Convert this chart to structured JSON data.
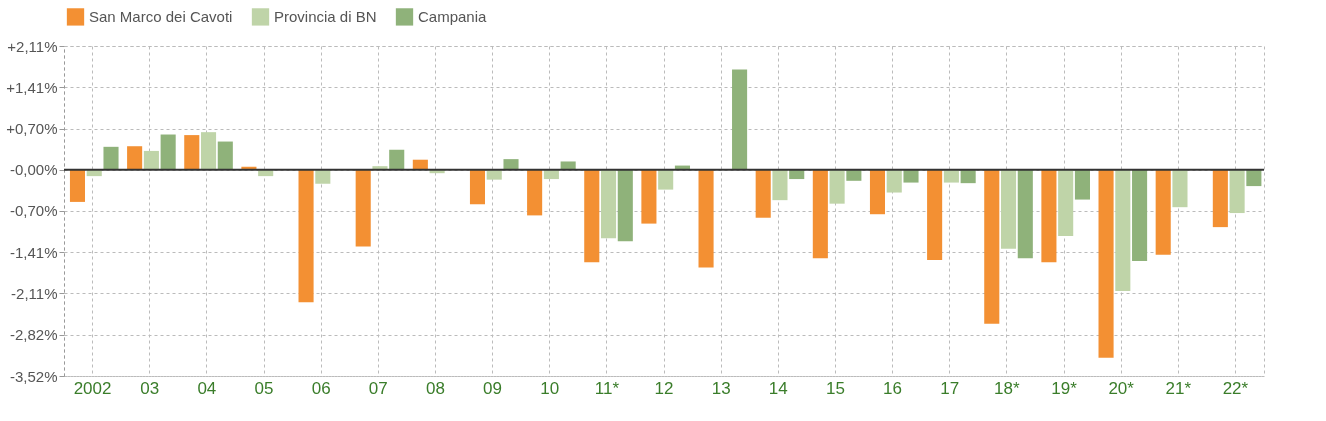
{
  "chart_data": {
    "type": "bar",
    "categories": [
      "2002",
      "03",
      "04",
      "05",
      "06",
      "07",
      "08",
      "09",
      "10",
      "11*",
      "12",
      "13",
      "14",
      "15",
      "16",
      "17",
      "18*",
      "19*",
      "20*",
      "21*",
      "22*"
    ],
    "series": [
      {
        "name": "San Marco dei Cavoti",
        "color": "#f39033",
        "values": [
          -0.55,
          0.4,
          0.59,
          0.05,
          -2.26,
          -1.31,
          0.17,
          -0.59,
          -0.78,
          -1.58,
          -0.92,
          -1.67,
          -0.82,
          -1.51,
          -0.76,
          -1.54,
          -2.63,
          -1.58,
          -3.21,
          -1.45,
          -0.98
        ]
      },
      {
        "name": "Provincia di BN",
        "color": "#bfd4a8",
        "values": [
          -0.11,
          0.32,
          0.64,
          -0.11,
          -0.24,
          0.06,
          -0.06,
          -0.17,
          -0.16,
          -1.17,
          -0.34,
          0.0,
          -0.52,
          -0.58,
          -0.39,
          -0.22,
          -1.35,
          -1.13,
          -2.07,
          -0.64,
          -0.74
        ]
      },
      {
        "name": "Campania",
        "color": "#8fb27a",
        "values": [
          0.39,
          0.6,
          0.48,
          0.0,
          null,
          0.34,
          0.0,
          0.18,
          0.14,
          -1.22,
          0.07,
          1.71,
          -0.16,
          -0.19,
          -0.22,
          -0.23,
          -1.51,
          -0.51,
          -1.56,
          null,
          -0.28
        ]
      }
    ],
    "ylim": [
      -3.52,
      2.11
    ],
    "yticks": [
      {
        "value": -3.52,
        "label": "-3,52%"
      },
      {
        "value": -2.82,
        "label": "-2,82%"
      },
      {
        "value": -2.11,
        "label": "-2,11%"
      },
      {
        "value": -1.41,
        "label": "-1,41%"
      },
      {
        "value": -0.7,
        "label": "-0,70%"
      },
      {
        "value": 0,
        "label": "-0,00%"
      },
      {
        "value": 0.7,
        "label": "+0,70%"
      },
      {
        "value": 1.41,
        "label": "+1,41%"
      },
      {
        "value": 2.11,
        "label": "+2,11%"
      }
    ],
    "ref_lines": [
      {
        "axis": "y",
        "value": 0,
        "color": "#333333"
      }
    ],
    "grid": true,
    "legend": "top"
  }
}
